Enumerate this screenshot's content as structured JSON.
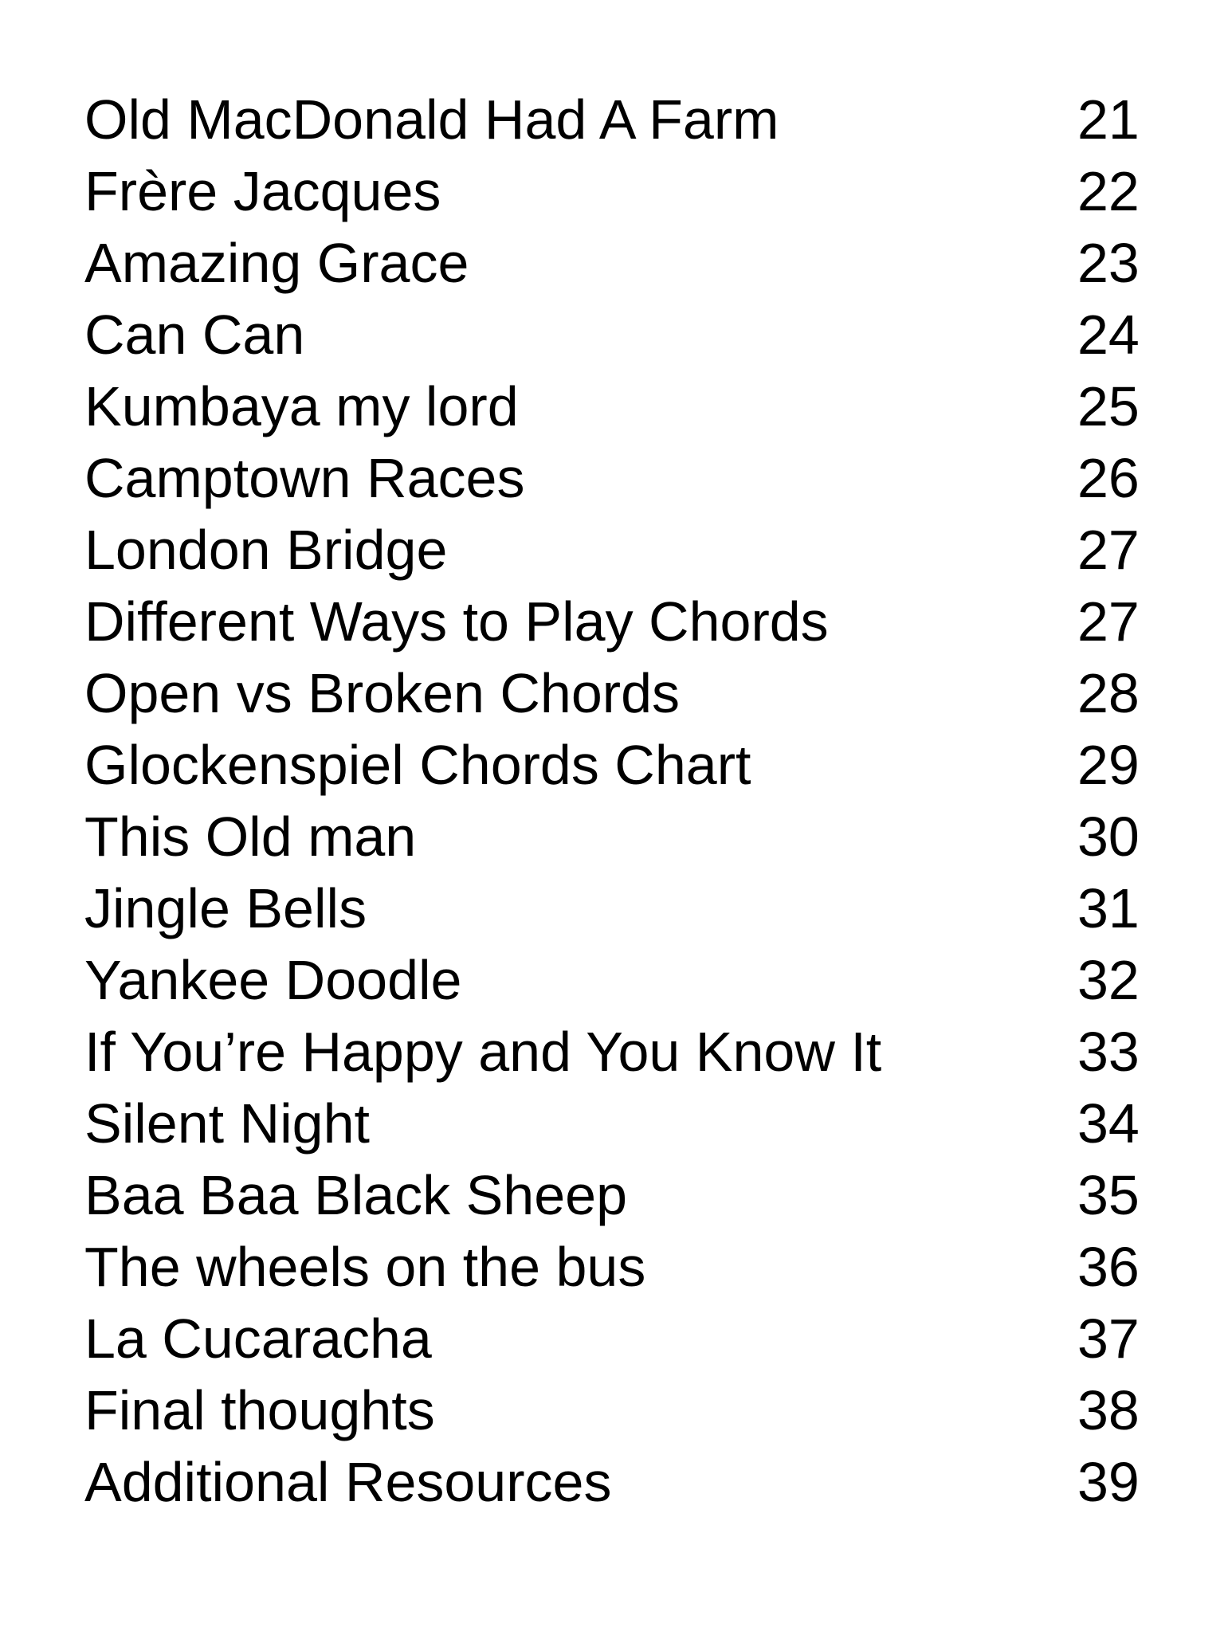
{
  "page": {
    "background_color": "#ffffff",
    "text_color": "#000000"
  },
  "toc": {
    "entries": [
      {
        "title": "Old MacDonald Had A Farm",
        "page": "21"
      },
      {
        "title": "Frère Jacques",
        "page": "22"
      },
      {
        "title": "Amazing Grace",
        "page": "23"
      },
      {
        "title": "Can Can",
        "page": "24"
      },
      {
        "title": "Kumbaya my lord",
        "page": "25"
      },
      {
        "title": "Camptown Races",
        "page": "26"
      },
      {
        "title": "London Bridge",
        "page": "27"
      },
      {
        "title": "Different Ways to Play Chords",
        "page": "27"
      },
      {
        "title": "Open vs Broken Chords",
        "page": "28"
      },
      {
        "title": "Glockenspiel Chords Chart",
        "page": "29"
      },
      {
        "title": "This Old man",
        "page": "30"
      },
      {
        "title": "Jingle Bells",
        "page": "31"
      },
      {
        "title": "Yankee Doodle",
        "page": "32"
      },
      {
        "title": "If You’re Happy and You Know It",
        "page": "33"
      },
      {
        "title": "Silent Night",
        "page": "34"
      },
      {
        "title": "Baa Baa Black Sheep",
        "page": "35"
      },
      {
        "title": "The wheels on the bus",
        "page": "36"
      },
      {
        "title": "La Cucaracha",
        "page": "37"
      },
      {
        "title": "Final thoughts",
        "page": "38"
      },
      {
        "title": "Additional Resources",
        "page": "39"
      }
    ]
  }
}
